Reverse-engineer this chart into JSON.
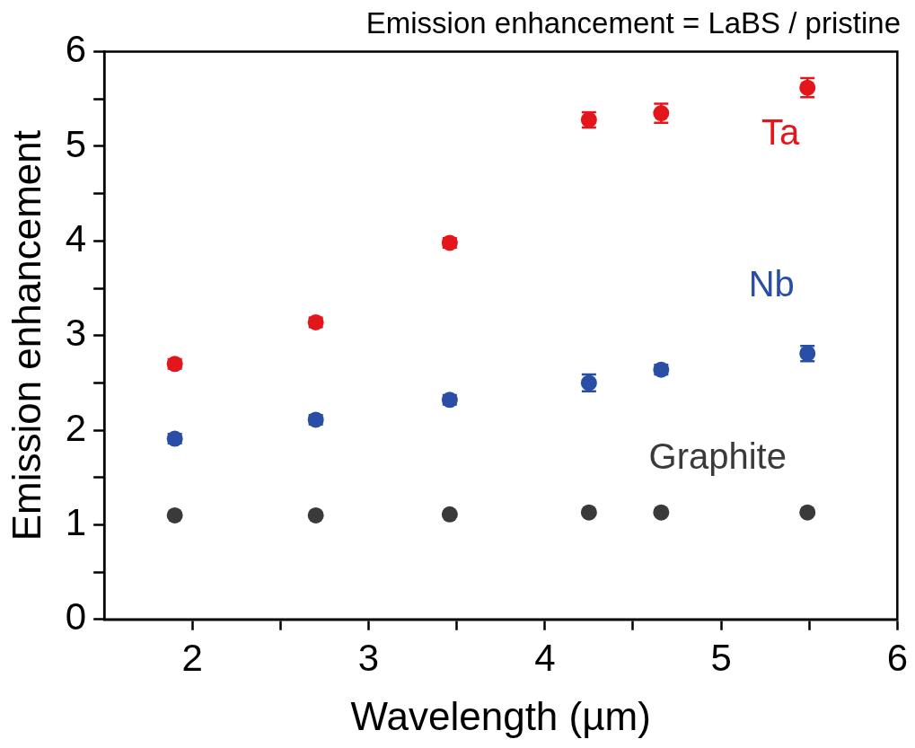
{
  "chart_data": {
    "type": "scatter",
    "title": "Emission enhancement = LaBS / pristine",
    "xlabel": "Wavelength (µm)",
    "ylabel": "Emission enhancement",
    "x": [
      1.9,
      2.7,
      3.46,
      4.25,
      4.66,
      5.49
    ],
    "series": [
      {
        "name": "Ta",
        "color": "#e3161c",
        "values": [
          2.7,
          3.14,
          3.98,
          5.28,
          5.35,
          5.62
        ],
        "errors": [
          0.05,
          0.05,
          0.05,
          0.08,
          0.1,
          0.1
        ]
      },
      {
        "name": "Nb",
        "color": "#2a4ea6",
        "values": [
          1.91,
          2.11,
          2.32,
          2.5,
          2.64,
          2.81
        ],
        "errors": [
          0.05,
          0.05,
          0.05,
          0.09,
          0.05,
          0.08
        ]
      },
      {
        "name": "Graphite",
        "color": "#3a3a3a",
        "values": [
          1.1,
          1.1,
          1.11,
          1.13,
          1.13,
          1.13
        ]
      }
    ],
    "xlim": [
      1.5,
      6
    ],
    "ylim": [
      0,
      6
    ],
    "xticks": [
      2,
      {
        "value": 2.5,
        "label": null
      },
      3,
      {
        "value": 3.5,
        "label": null
      },
      4,
      {
        "value": 4.5,
        "label": null
      },
      5,
      {
        "value": 5.5,
        "label": null
      },
      6
    ],
    "yticks": [
      0,
      {
        "value": 0.5,
        "label": null
      },
      1,
      {
        "value": 1.5,
        "label": null
      },
      2,
      {
        "value": 2.5,
        "label": null
      },
      3,
      {
        "value": 3.5,
        "label": null
      },
      4,
      {
        "value": 4.5,
        "label": null
      },
      5,
      {
        "value": 5.5,
        "label": null
      },
      6
    ],
    "grid": false,
    "legend": false,
    "marker": "circle"
  }
}
